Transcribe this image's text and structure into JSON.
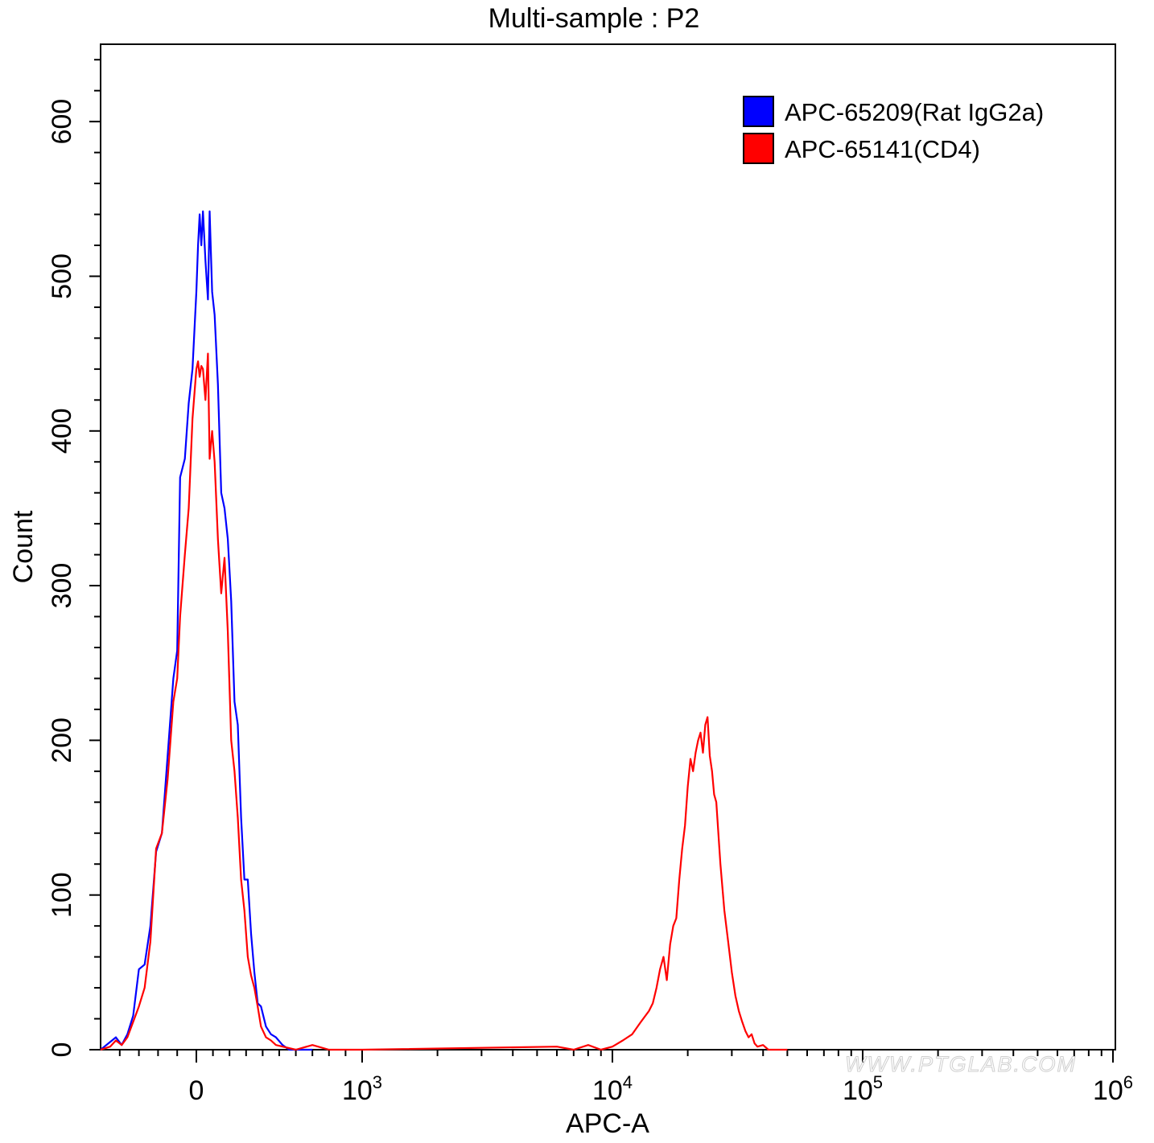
{
  "chart_data": {
    "type": "line",
    "title": "Multi-sample : P2",
    "xlabel": "APC-A",
    "ylabel": "Count",
    "x_scale": "biexponential",
    "xlim": [
      -500,
      1000000
    ],
    "ylim": [
      0,
      650
    ],
    "yticks": [
      0,
      100,
      200,
      300,
      400,
      500,
      600
    ],
    "ytick_labels": [
      "0",
      "100",
      "200",
      "300",
      "400",
      "500",
      "600"
    ],
    "xticks": [
      {
        "value": 0,
        "base": "0",
        "exp": ""
      },
      {
        "value": 1000,
        "base": "10",
        "exp": "3"
      },
      {
        "value": 10000,
        "base": "10",
        "exp": "4"
      },
      {
        "value": 100000,
        "base": "10",
        "exp": "5"
      },
      {
        "value": 1000000,
        "base": "10",
        "exp": "6"
      }
    ],
    "legend_position": "top-right",
    "series": [
      {
        "name": "APC-65209(Rat IgG2a)",
        "color": "#0000ff",
        "points": [
          [
            -500,
            0
          ],
          [
            -450,
            5
          ],
          [
            -420,
            8
          ],
          [
            -390,
            3
          ],
          [
            -360,
            10
          ],
          [
            -330,
            22
          ],
          [
            -300,
            52
          ],
          [
            -270,
            55
          ],
          [
            -240,
            80
          ],
          [
            -210,
            128
          ],
          [
            -180,
            140
          ],
          [
            -150,
            190
          ],
          [
            -120,
            240
          ],
          [
            -100,
            258
          ],
          [
            -85,
            370
          ],
          [
            -60,
            382
          ],
          [
            -40,
            418
          ],
          [
            -20,
            440
          ],
          [
            0,
            490
          ],
          [
            10,
            520
          ],
          [
            20,
            540
          ],
          [
            30,
            520
          ],
          [
            40,
            542
          ],
          [
            55,
            510
          ],
          [
            70,
            485
          ],
          [
            80,
            542
          ],
          [
            95,
            490
          ],
          [
            110,
            475
          ],
          [
            130,
            430
          ],
          [
            150,
            360
          ],
          [
            170,
            350
          ],
          [
            190,
            330
          ],
          [
            210,
            290
          ],
          [
            230,
            225
          ],
          [
            250,
            210
          ],
          [
            270,
            150
          ],
          [
            290,
            110
          ],
          [
            310,
            110
          ],
          [
            330,
            75
          ],
          [
            350,
            50
          ],
          [
            370,
            30
          ],
          [
            390,
            28
          ],
          [
            420,
            15
          ],
          [
            450,
            10
          ],
          [
            480,
            8
          ],
          [
            520,
            3
          ],
          [
            560,
            0
          ],
          [
            700,
            0
          ]
        ]
      },
      {
        "name": "APC-65141(CD4)",
        "color": "#ff0000",
        "points": [
          [
            -500,
            0
          ],
          [
            -450,
            2
          ],
          [
            -420,
            6
          ],
          [
            -390,
            3
          ],
          [
            -360,
            8
          ],
          [
            -330,
            18
          ],
          [
            -300,
            28
          ],
          [
            -270,
            40
          ],
          [
            -240,
            70
          ],
          [
            -210,
            130
          ],
          [
            -180,
            140
          ],
          [
            -150,
            175
          ],
          [
            -120,
            225
          ],
          [
            -100,
            240
          ],
          [
            -85,
            280
          ],
          [
            -60,
            320
          ],
          [
            -40,
            350
          ],
          [
            -20,
            408
          ],
          [
            0,
            440
          ],
          [
            10,
            445
          ],
          [
            20,
            435
          ],
          [
            30,
            442
          ],
          [
            40,
            440
          ],
          [
            55,
            420
          ],
          [
            70,
            450
          ],
          [
            80,
            382
          ],
          [
            95,
            400
          ],
          [
            110,
            380
          ],
          [
            130,
            330
          ],
          [
            150,
            295
          ],
          [
            170,
            318
          ],
          [
            190,
            270
          ],
          [
            210,
            200
          ],
          [
            230,
            180
          ],
          [
            250,
            150
          ],
          [
            270,
            110
          ],
          [
            290,
            90
          ],
          [
            310,
            60
          ],
          [
            330,
            48
          ],
          [
            350,
            40
          ],
          [
            370,
            28
          ],
          [
            390,
            15
          ],
          [
            420,
            8
          ],
          [
            450,
            6
          ],
          [
            480,
            3
          ],
          [
            600,
            0
          ],
          [
            700,
            3
          ],
          [
            800,
            0
          ],
          [
            1000,
            0
          ],
          [
            6000,
            2
          ],
          [
            7000,
            0
          ],
          [
            8000,
            3
          ],
          [
            9000,
            0
          ],
          [
            10000,
            2
          ],
          [
            11000,
            6
          ],
          [
            12000,
            10
          ],
          [
            13000,
            18
          ],
          [
            14000,
            25
          ],
          [
            14500,
            30
          ],
          [
            15000,
            40
          ],
          [
            15500,
            52
          ],
          [
            16000,
            60
          ],
          [
            16500,
            45
          ],
          [
            17000,
            68
          ],
          [
            17500,
            80
          ],
          [
            18000,
            85
          ],
          [
            18500,
            110
          ],
          [
            19000,
            130
          ],
          [
            19500,
            145
          ],
          [
            20000,
            170
          ],
          [
            20500,
            188
          ],
          [
            21000,
            180
          ],
          [
            21500,
            192
          ],
          [
            22000,
            200
          ],
          [
            22500,
            205
          ],
          [
            23000,
            192
          ],
          [
            23500,
            210
          ],
          [
            24000,
            215
          ],
          [
            24500,
            190
          ],
          [
            25000,
            180
          ],
          [
            25500,
            165
          ],
          [
            26000,
            160
          ],
          [
            27000,
            120
          ],
          [
            28000,
            90
          ],
          [
            29000,
            70
          ],
          [
            30000,
            50
          ],
          [
            31000,
            35
          ],
          [
            32000,
            25
          ],
          [
            33000,
            18
          ],
          [
            34000,
            12
          ],
          [
            35000,
            8
          ],
          [
            36000,
            10
          ],
          [
            37000,
            4
          ],
          [
            38000,
            2
          ],
          [
            40000,
            3
          ],
          [
            42000,
            0
          ],
          [
            50000,
            0
          ]
        ]
      }
    ],
    "watermark": "WWW.PTGLAB.COM"
  }
}
